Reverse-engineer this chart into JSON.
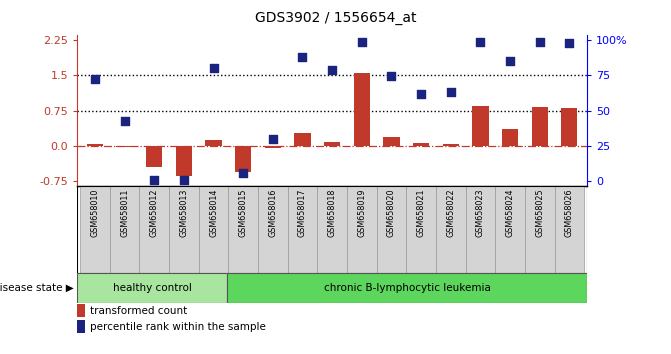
{
  "title": "GDS3902 / 1556654_at",
  "samples": [
    "GSM658010",
    "GSM658011",
    "GSM658012",
    "GSM658013",
    "GSM658014",
    "GSM658015",
    "GSM658016",
    "GSM658017",
    "GSM658018",
    "GSM658019",
    "GSM658020",
    "GSM658021",
    "GSM658022",
    "GSM658023",
    "GSM658024",
    "GSM658025",
    "GSM658026"
  ],
  "transformed_count": [
    0.05,
    -0.02,
    -0.45,
    -0.65,
    0.12,
    -0.55,
    -0.05,
    0.28,
    0.08,
    1.55,
    0.18,
    0.07,
    0.05,
    0.85,
    0.35,
    0.82,
    0.8
  ],
  "percentile_rank_left": [
    1.42,
    0.52,
    -0.73,
    -0.73,
    1.65,
    -0.58,
    0.15,
    1.88,
    1.62,
    2.22,
    1.48,
    1.1,
    1.15,
    2.2,
    1.8,
    2.2,
    2.18
  ],
  "healthy_count": 5,
  "left_ylim": [
    -0.85,
    2.35
  ],
  "left_yticks": [
    -0.75,
    0.0,
    0.75,
    1.5,
    2.25
  ],
  "right_yticks": [
    0,
    25,
    50,
    75,
    100
  ],
  "hlines": [
    1.5,
    0.75
  ],
  "bar_color": "#c0392b",
  "dot_color": "#1a237e",
  "healthy_color": "#a8e6a0",
  "leukemia_color": "#5cd65c",
  "tick_bg_color": "#d4d4d4",
  "disease_label": "disease state",
  "healthy_label": "healthy control",
  "leukemia_label": "chronic B-lymphocytic leukemia",
  "legend_bar": "transformed count",
  "legend_dot": "percentile rank within the sample",
  "bar_width": 0.55
}
